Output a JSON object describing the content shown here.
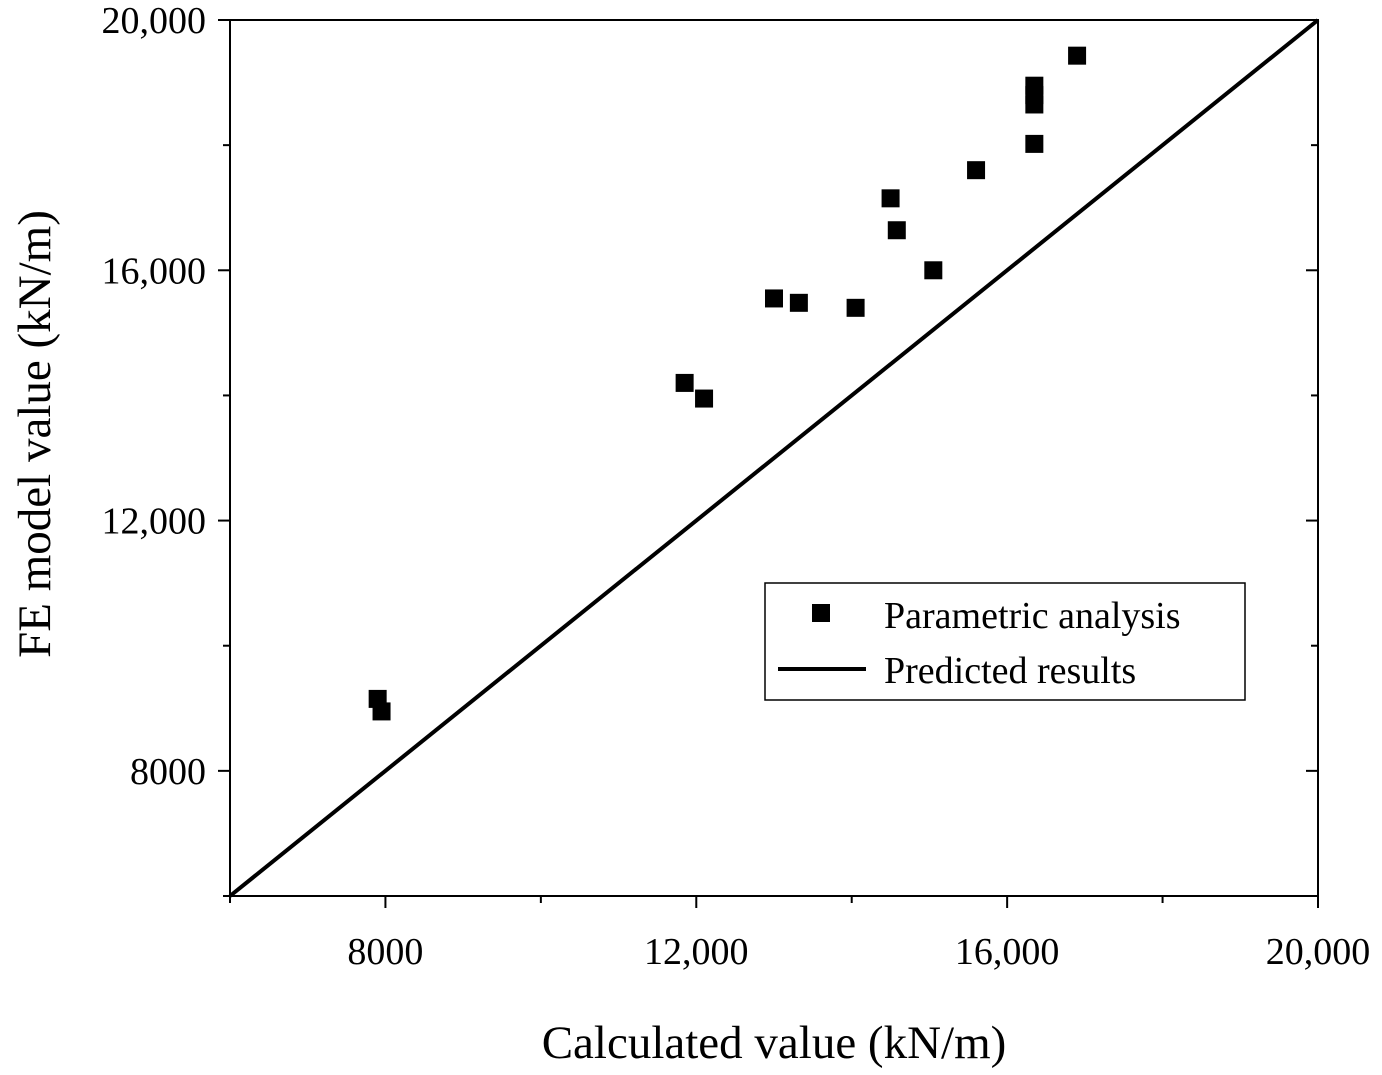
{
  "chart_data": {
    "type": "scatter",
    "title": "",
    "xlabel": "Calculated value (kN/m)",
    "ylabel": "FE model value (kN/m)",
    "xlim": [
      6000,
      20000
    ],
    "ylim": [
      6000,
      20000
    ],
    "x_ticks": [
      {
        "value": 8000,
        "label": "8000"
      },
      {
        "value": 12000,
        "label": "12,000"
      },
      {
        "value": 16000,
        "label": "16,000"
      },
      {
        "value": 20000,
        "label": "20,000"
      }
    ],
    "y_ticks": [
      {
        "value": 8000,
        "label": "8000"
      },
      {
        "value": 12000,
        "label": "12,000"
      },
      {
        "value": 16000,
        "label": "16,000"
      },
      {
        "value": 20000,
        "label": "20,000"
      }
    ],
    "minor_tick_step": 2000,
    "grid": false,
    "legend_position": "center-right",
    "series": [
      {
        "name": "Parametric analysis",
        "type": "scatter",
        "marker": "square",
        "color": "#000000",
        "points": [
          {
            "x": 7900,
            "y": 9150
          },
          {
            "x": 7950,
            "y": 8950
          },
          {
            "x": 11850,
            "y": 14200
          },
          {
            "x": 12100,
            "y": 13950
          },
          {
            "x": 13000,
            "y": 15550
          },
          {
            "x": 13320,
            "y": 15480
          },
          {
            "x": 14050,
            "y": 15400
          },
          {
            "x": 14500,
            "y": 17150
          },
          {
            "x": 14580,
            "y": 16640
          },
          {
            "x": 15050,
            "y": 16000
          },
          {
            "x": 15600,
            "y": 17600
          },
          {
            "x": 16350,
            "y": 18020
          },
          {
            "x": 16350,
            "y": 18650
          },
          {
            "x": 16350,
            "y": 18800
          },
          {
            "x": 16350,
            "y": 18950
          },
          {
            "x": 16900,
            "y": 19430
          }
        ]
      },
      {
        "name": "Predicted results",
        "type": "line",
        "color": "#000000",
        "points": [
          {
            "x": 6000,
            "y": 6000
          },
          {
            "x": 20000,
            "y": 20000
          }
        ]
      }
    ]
  }
}
